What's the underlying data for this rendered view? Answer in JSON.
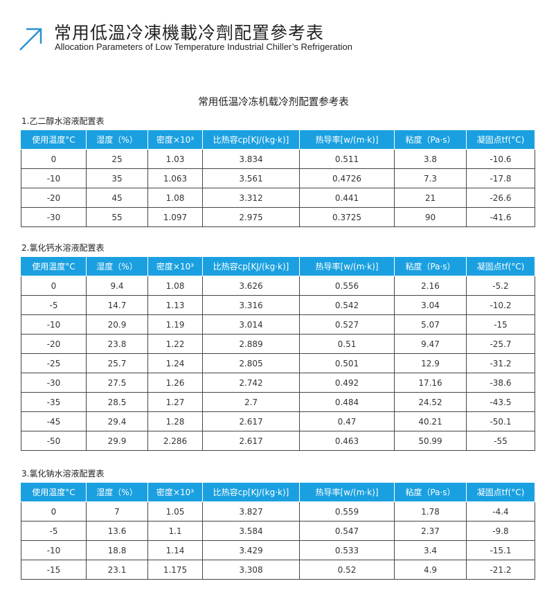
{
  "header": {
    "title_cn": "常用低溫冷凍機載冷劑配置參考表",
    "title_en": "Allocation Parameters of Low Temperature Industrial Chiller’s Refrigeration",
    "accent": "#2a8fd0",
    "icon": "arrow-up-right-icon"
  },
  "doc_title": "常用低温冷冻机载冷剂配置参考表",
  "columns": [
    "使用温度°C",
    "湿度（%）",
    "密度×10³",
    "比热容cp[KJ/(kg·k)]",
    "热导率[w/(m·k)]",
    "粘度（Pa·s）",
    "凝固点tf(°C)"
  ],
  "header_color": "#1aa0e0",
  "tables": [
    {
      "title": "1.乙二醇水溶液配置表",
      "rows": [
        [
          "0",
          "25",
          "1.03",
          "3.834",
          "0.511",
          "3.8",
          "-10.6"
        ],
        [
          "-10",
          "35",
          "1.063",
          "3.561",
          "0.4726",
          "7.3",
          "-17.8"
        ],
        [
          "-20",
          "45",
          "1.08",
          "3.312",
          "0.441",
          "21",
          "-26.6"
        ],
        [
          "-30",
          "55",
          "1.097",
          "2.975",
          "0.3725",
          "90",
          "-41.6"
        ]
      ]
    },
    {
      "title": "2.氯化钙水溶液配置表",
      "rows": [
        [
          "0",
          "9.4",
          "1.08",
          "3.626",
          "0.556",
          "2.16",
          "-5.2"
        ],
        [
          "-5",
          "14.7",
          "1.13",
          "3.316",
          "0.542",
          "3.04",
          "-10.2"
        ],
        [
          "-10",
          "20.9",
          "1.19",
          "3.014",
          "0.527",
          "5.07",
          "-15"
        ],
        [
          "-20",
          "23.8",
          "1.22",
          "2.889",
          "0.51",
          "9.47",
          "-25.7"
        ],
        [
          "-25",
          "25.7",
          "1.24",
          "2.805",
          "0.501",
          "12.9",
          "-31.2"
        ],
        [
          "-30",
          "27.5",
          "1.26",
          "2.742",
          "0.492",
          "17.16",
          "-38.6"
        ],
        [
          "-35",
          "28.5",
          "1.27",
          "2.7",
          "0.484",
          "24.52",
          "-43.5"
        ],
        [
          "-45",
          "29.4",
          "1.28",
          "2.617",
          "0.47",
          "40.21",
          "-50.1"
        ],
        [
          "-50",
          "29.9",
          "2.286",
          "2.617",
          "0.463",
          "50.99",
          "-55"
        ]
      ]
    },
    {
      "title": "3.氯化钠水溶液配置表",
      "rows": [
        [
          "0",
          "7",
          "1.05",
          "3.827",
          "0.559",
          "1.78",
          "-4.4"
        ],
        [
          "-5",
          "13.6",
          "1.1",
          "3.584",
          "0.547",
          "2.37",
          "-9.8"
        ],
        [
          "-10",
          "18.8",
          "1.14",
          "3.429",
          "0.533",
          "3.4",
          "-15.1"
        ],
        [
          "-15",
          "23.1",
          "1.175",
          "3.308",
          "0.52",
          "4.9",
          "-21.2"
        ]
      ]
    }
  ]
}
